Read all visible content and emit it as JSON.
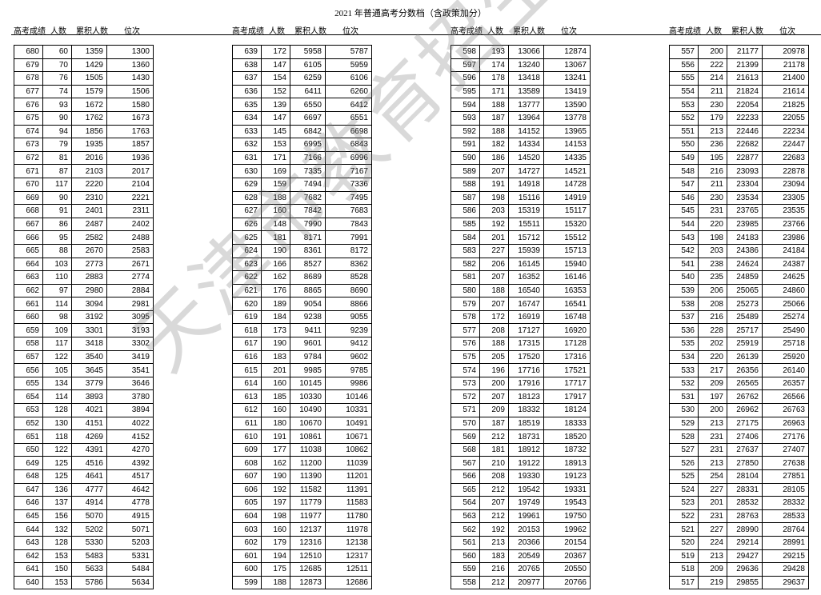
{
  "title": "2021 年普通高考分数档（含政策加分）",
  "headers": [
    "高考成绩",
    "人数",
    "累积人数",
    "位次"
  ],
  "watermark": "天津市教育招生考试院",
  "blocks": [
    [
      [
        "680",
        "60",
        "1359",
        "1300"
      ],
      [
        "679",
        "70",
        "1429",
        "1360"
      ],
      [
        "678",
        "76",
        "1505",
        "1430"
      ],
      [
        "677",
        "74",
        "1579",
        "1506"
      ],
      [
        "676",
        "93",
        "1672",
        "1580"
      ],
      [
        "675",
        "90",
        "1762",
        "1673"
      ],
      [
        "674",
        "94",
        "1856",
        "1763"
      ],
      [
        "673",
        "79",
        "1935",
        "1857"
      ],
      [
        "672",
        "81",
        "2016",
        "1936"
      ],
      [
        "671",
        "87",
        "2103",
        "2017"
      ],
      [
        "670",
        "117",
        "2220",
        "2104"
      ],
      [
        "669",
        "90",
        "2310",
        "2221"
      ],
      [
        "668",
        "91",
        "2401",
        "2311"
      ],
      [
        "667",
        "86",
        "2487",
        "2402"
      ],
      [
        "666",
        "95",
        "2582",
        "2488"
      ],
      [
        "665",
        "88",
        "2670",
        "2583"
      ],
      [
        "664",
        "103",
        "2773",
        "2671"
      ],
      [
        "663",
        "110",
        "2883",
        "2774"
      ],
      [
        "662",
        "97",
        "2980",
        "2884"
      ],
      [
        "661",
        "114",
        "3094",
        "2981"
      ],
      [
        "660",
        "98",
        "3192",
        "3095"
      ],
      [
        "659",
        "109",
        "3301",
        "3193"
      ],
      [
        "658",
        "117",
        "3418",
        "3302"
      ],
      [
        "657",
        "122",
        "3540",
        "3419"
      ],
      [
        "656",
        "105",
        "3645",
        "3541"
      ],
      [
        "655",
        "134",
        "3779",
        "3646"
      ],
      [
        "654",
        "114",
        "3893",
        "3780"
      ],
      [
        "653",
        "128",
        "4021",
        "3894"
      ],
      [
        "652",
        "130",
        "4151",
        "4022"
      ],
      [
        "651",
        "118",
        "4269",
        "4152"
      ],
      [
        "650",
        "122",
        "4391",
        "4270"
      ],
      [
        "649",
        "125",
        "4516",
        "4392"
      ],
      [
        "648",
        "125",
        "4641",
        "4517"
      ],
      [
        "647",
        "136",
        "4777",
        "4642"
      ],
      [
        "646",
        "137",
        "4914",
        "4778"
      ],
      [
        "645",
        "156",
        "5070",
        "4915"
      ],
      [
        "644",
        "132",
        "5202",
        "5071"
      ],
      [
        "643",
        "128",
        "5330",
        "5203"
      ],
      [
        "642",
        "153",
        "5483",
        "5331"
      ],
      [
        "641",
        "150",
        "5633",
        "5484"
      ],
      [
        "640",
        "153",
        "5786",
        "5634"
      ]
    ],
    [
      [
        "639",
        "172",
        "5958",
        "5787"
      ],
      [
        "638",
        "147",
        "6105",
        "5959"
      ],
      [
        "637",
        "154",
        "6259",
        "6106"
      ],
      [
        "636",
        "152",
        "6411",
        "6260"
      ],
      [
        "635",
        "139",
        "6550",
        "6412"
      ],
      [
        "634",
        "147",
        "6697",
        "6551"
      ],
      [
        "633",
        "145",
        "6842",
        "6698"
      ],
      [
        "632",
        "153",
        "6995",
        "6843"
      ],
      [
        "631",
        "171",
        "7166",
        "6996"
      ],
      [
        "630",
        "169",
        "7335",
        "7167"
      ],
      [
        "629",
        "159",
        "7494",
        "7336"
      ],
      [
        "628",
        "188",
        "7682",
        "7495"
      ],
      [
        "627",
        "160",
        "7842",
        "7683"
      ],
      [
        "626",
        "148",
        "7990",
        "7843"
      ],
      [
        "625",
        "181",
        "8171",
        "7991"
      ],
      [
        "624",
        "190",
        "8361",
        "8172"
      ],
      [
        "623",
        "166",
        "8527",
        "8362"
      ],
      [
        "622",
        "162",
        "8689",
        "8528"
      ],
      [
        "621",
        "176",
        "8865",
        "8690"
      ],
      [
        "620",
        "189",
        "9054",
        "8866"
      ],
      [
        "619",
        "184",
        "9238",
        "9055"
      ],
      [
        "618",
        "173",
        "9411",
        "9239"
      ],
      [
        "617",
        "190",
        "9601",
        "9412"
      ],
      [
        "616",
        "183",
        "9784",
        "9602"
      ],
      [
        "615",
        "201",
        "9985",
        "9785"
      ],
      [
        "614",
        "160",
        "10145",
        "9986"
      ],
      [
        "613",
        "185",
        "10330",
        "10146"
      ],
      [
        "612",
        "160",
        "10490",
        "10331"
      ],
      [
        "611",
        "180",
        "10670",
        "10491"
      ],
      [
        "610",
        "191",
        "10861",
        "10671"
      ],
      [
        "609",
        "177",
        "11038",
        "10862"
      ],
      [
        "608",
        "162",
        "11200",
        "11039"
      ],
      [
        "607",
        "190",
        "11390",
        "11201"
      ],
      [
        "606",
        "192",
        "11582",
        "11391"
      ],
      [
        "605",
        "197",
        "11779",
        "11583"
      ],
      [
        "604",
        "198",
        "11977",
        "11780"
      ],
      [
        "603",
        "160",
        "12137",
        "11978"
      ],
      [
        "602",
        "179",
        "12316",
        "12138"
      ],
      [
        "601",
        "194",
        "12510",
        "12317"
      ],
      [
        "600",
        "175",
        "12685",
        "12511"
      ],
      [
        "599",
        "188",
        "12873",
        "12686"
      ]
    ],
    [
      [
        "598",
        "193",
        "13066",
        "12874"
      ],
      [
        "597",
        "174",
        "13240",
        "13067"
      ],
      [
        "596",
        "178",
        "13418",
        "13241"
      ],
      [
        "595",
        "171",
        "13589",
        "13419"
      ],
      [
        "594",
        "188",
        "13777",
        "13590"
      ],
      [
        "593",
        "187",
        "13964",
        "13778"
      ],
      [
        "592",
        "188",
        "14152",
        "13965"
      ],
      [
        "591",
        "182",
        "14334",
        "14153"
      ],
      [
        "590",
        "186",
        "14520",
        "14335"
      ],
      [
        "589",
        "207",
        "14727",
        "14521"
      ],
      [
        "588",
        "191",
        "14918",
        "14728"
      ],
      [
        "587",
        "198",
        "15116",
        "14919"
      ],
      [
        "586",
        "203",
        "15319",
        "15117"
      ],
      [
        "585",
        "192",
        "15511",
        "15320"
      ],
      [
        "584",
        "201",
        "15712",
        "15512"
      ],
      [
        "583",
        "227",
        "15939",
        "15713"
      ],
      [
        "582",
        "206",
        "16145",
        "15940"
      ],
      [
        "581",
        "207",
        "16352",
        "16146"
      ],
      [
        "580",
        "188",
        "16540",
        "16353"
      ],
      [
        "579",
        "207",
        "16747",
        "16541"
      ],
      [
        "578",
        "172",
        "16919",
        "16748"
      ],
      [
        "577",
        "208",
        "17127",
        "16920"
      ],
      [
        "576",
        "188",
        "17315",
        "17128"
      ],
      [
        "575",
        "205",
        "17520",
        "17316"
      ],
      [
        "574",
        "196",
        "17716",
        "17521"
      ],
      [
        "573",
        "200",
        "17916",
        "17717"
      ],
      [
        "572",
        "207",
        "18123",
        "17917"
      ],
      [
        "571",
        "209",
        "18332",
        "18124"
      ],
      [
        "570",
        "187",
        "18519",
        "18333"
      ],
      [
        "569",
        "212",
        "18731",
        "18520"
      ],
      [
        "568",
        "181",
        "18912",
        "18732"
      ],
      [
        "567",
        "210",
        "19122",
        "18913"
      ],
      [
        "566",
        "208",
        "19330",
        "19123"
      ],
      [
        "565",
        "212",
        "19542",
        "19331"
      ],
      [
        "564",
        "207",
        "19749",
        "19543"
      ],
      [
        "563",
        "212",
        "19961",
        "19750"
      ],
      [
        "562",
        "192",
        "20153",
        "19962"
      ],
      [
        "561",
        "213",
        "20366",
        "20154"
      ],
      [
        "560",
        "183",
        "20549",
        "20367"
      ],
      [
        "559",
        "216",
        "20765",
        "20550"
      ],
      [
        "558",
        "212",
        "20977",
        "20766"
      ]
    ],
    [
      [
        "557",
        "200",
        "21177",
        "20978"
      ],
      [
        "556",
        "222",
        "21399",
        "21178"
      ],
      [
        "555",
        "214",
        "21613",
        "21400"
      ],
      [
        "554",
        "211",
        "21824",
        "21614"
      ],
      [
        "553",
        "230",
        "22054",
        "21825"
      ],
      [
        "552",
        "179",
        "22233",
        "22055"
      ],
      [
        "551",
        "213",
        "22446",
        "22234"
      ],
      [
        "550",
        "236",
        "22682",
        "22447"
      ],
      [
        "549",
        "195",
        "22877",
        "22683"
      ],
      [
        "548",
        "216",
        "23093",
        "22878"
      ],
      [
        "547",
        "211",
        "23304",
        "23094"
      ],
      [
        "546",
        "230",
        "23534",
        "23305"
      ],
      [
        "545",
        "231",
        "23765",
        "23535"
      ],
      [
        "544",
        "220",
        "23985",
        "23766"
      ],
      [
        "543",
        "198",
        "24183",
        "23986"
      ],
      [
        "542",
        "203",
        "24386",
        "24184"
      ],
      [
        "541",
        "238",
        "24624",
        "24387"
      ],
      [
        "540",
        "235",
        "24859",
        "24625"
      ],
      [
        "539",
        "206",
        "25065",
        "24860"
      ],
      [
        "538",
        "208",
        "25273",
        "25066"
      ],
      [
        "537",
        "216",
        "25489",
        "25274"
      ],
      [
        "536",
        "228",
        "25717",
        "25490"
      ],
      [
        "535",
        "202",
        "25919",
        "25718"
      ],
      [
        "534",
        "220",
        "26139",
        "25920"
      ],
      [
        "533",
        "217",
        "26356",
        "26140"
      ],
      [
        "532",
        "209",
        "26565",
        "26357"
      ],
      [
        "531",
        "197",
        "26762",
        "26566"
      ],
      [
        "530",
        "200",
        "26962",
        "26763"
      ],
      [
        "529",
        "213",
        "27175",
        "26963"
      ],
      [
        "528",
        "231",
        "27406",
        "27176"
      ],
      [
        "527",
        "231",
        "27637",
        "27407"
      ],
      [
        "526",
        "213",
        "27850",
        "27638"
      ],
      [
        "525",
        "254",
        "28104",
        "27851"
      ],
      [
        "524",
        "227",
        "28331",
        "28105"
      ],
      [
        "523",
        "201",
        "28532",
        "28332"
      ],
      [
        "522",
        "231",
        "28763",
        "28533"
      ],
      [
        "521",
        "227",
        "28990",
        "28764"
      ],
      [
        "520",
        "224",
        "29214",
        "28991"
      ],
      [
        "519",
        "213",
        "29427",
        "29215"
      ],
      [
        "518",
        "209",
        "29636",
        "29428"
      ],
      [
        "517",
        "219",
        "29855",
        "29637"
      ]
    ]
  ]
}
